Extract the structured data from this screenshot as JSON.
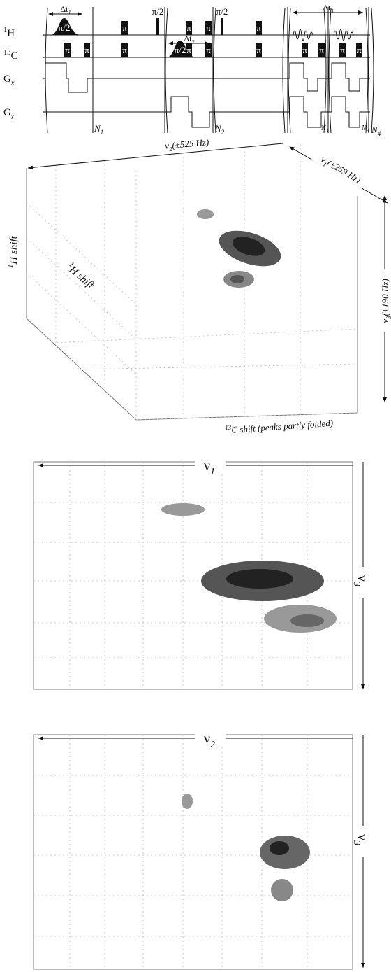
{
  "pulse_sequence": {
    "channels": [
      {
        "sup": "1",
        "main": "H"
      },
      {
        "sup": "13",
        "main": "C"
      },
      {
        "main": "G",
        "sub": "x"
      },
      {
        "main": "G",
        "sub": "z"
      }
    ],
    "h_pulses": [
      "π/2",
      "π",
      "π/2",
      "π",
      "π",
      "π/2",
      "π"
    ],
    "c_pulses": [
      "π",
      "π",
      "π",
      "π/2",
      "π",
      "π",
      "π",
      "π",
      "π",
      "π",
      "π"
    ],
    "delays": [
      {
        "main": "Δt",
        "sub": "1"
      },
      {
        "main": "Δt",
        "sub": "2"
      },
      {
        "main": "Δt",
        "sub": "3"
      }
    ],
    "loops": [
      {
        "main": "N",
        "sub": "1"
      },
      {
        "main": "N",
        "sub": "2"
      },
      {
        "main": "N",
        "sub": "3"
      },
      {
        "main": "N",
        "sub": "3"
      },
      {
        "main": "N",
        "sub": "4"
      }
    ]
  },
  "spectrum_3d": {
    "axis_nu2": {
      "main": "ν",
      "sub": "2",
      "rest": "(±525 Hz)"
    },
    "axis_nu1": {
      "main": "ν",
      "sub": "1",
      "rest": "(±259 Hz)"
    },
    "axis_nu3": {
      "main": "ν",
      "sub": "3",
      "rest": "(±190 Hz)"
    },
    "vertical_label": {
      "sup": "1",
      "main": "H shift"
    },
    "depth_label": {
      "sup": "1",
      "main": "H shift"
    },
    "horizontal_label": {
      "sup": "13",
      "main": "C shift (peaks partly folded)"
    }
  },
  "projection_1": {
    "x_axis": {
      "main": "ν",
      "sub": "1"
    },
    "y_axis": {
      "main": "ν",
      "sub": "3"
    }
  },
  "projection_2": {
    "x_axis": {
      "main": "ν",
      "sub": "2"
    },
    "y_axis": {
      "main": "ν",
      "sub": "3"
    }
  }
}
